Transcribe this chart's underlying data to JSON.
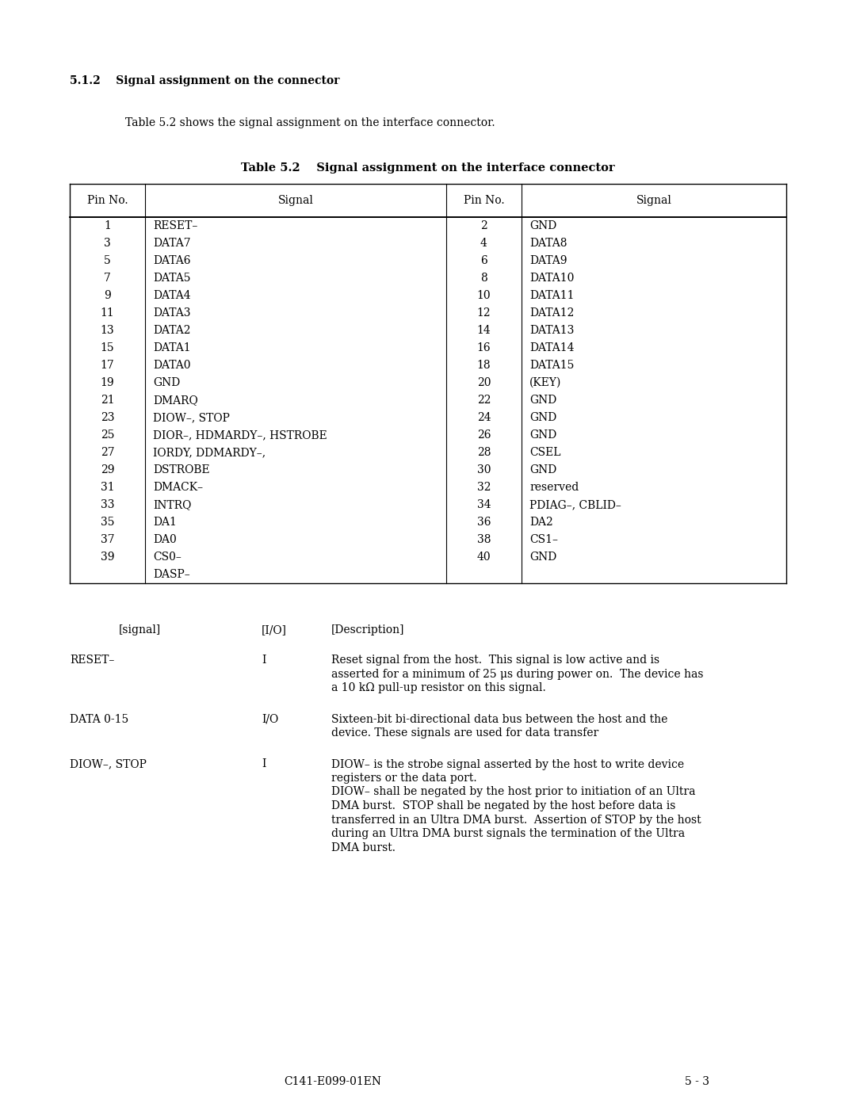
{
  "section_heading_num": "5.1.2",
  "section_heading_text": "Signal assignment on the connector",
  "intro_text": "Table 5.2 shows the signal assignment on the interface connector.",
  "table_title": "Table 5.2  Signal assignment on the interface connector",
  "table_headers": [
    "Pin No.",
    "Signal",
    "Pin No.",
    "Signal"
  ],
  "table_rows_left": [
    [
      "1",
      "RESET–"
    ],
    [
      "3",
      "DATA7"
    ],
    [
      "5",
      "DATA6"
    ],
    [
      "7",
      "DATA5"
    ],
    [
      "9",
      "DATA4"
    ],
    [
      "11",
      "DATA3"
    ],
    [
      "13",
      "DATA2"
    ],
    [
      "15",
      "DATA1"
    ],
    [
      "17",
      "DATA0"
    ],
    [
      "19",
      "GND"
    ],
    [
      "21",
      "DMARQ"
    ],
    [
      "23",
      "DIOW–, STOP"
    ],
    [
      "25",
      "DIOR–, HDMARDY–, HSTROBE"
    ],
    [
      "27",
      "IORDY, DDMARDY–,"
    ],
    [
      "29",
      "DSTROBE"
    ],
    [
      "31",
      "DMACK–"
    ],
    [
      "33",
      "INTRQ"
    ],
    [
      "35",
      "DA1"
    ],
    [
      "37",
      "DA0"
    ],
    [
      "39",
      "CS0–"
    ],
    [
      "",
      "DASP–"
    ]
  ],
  "table_rows_right": [
    [
      "2",
      "GND"
    ],
    [
      "4",
      "DATA8"
    ],
    [
      "6",
      "DATA9"
    ],
    [
      "8",
      "DATA10"
    ],
    [
      "10",
      "DATA11"
    ],
    [
      "12",
      "DATA12"
    ],
    [
      "14",
      "DATA13"
    ],
    [
      "16",
      "DATA14"
    ],
    [
      "18",
      "DATA15"
    ],
    [
      "20",
      "(KEY)"
    ],
    [
      "22",
      "GND"
    ],
    [
      "24",
      "GND"
    ],
    [
      "26",
      "GND"
    ],
    [
      "28",
      "CSEL"
    ],
    [
      "30",
      "GND"
    ],
    [
      "32",
      "reserved"
    ],
    [
      "34",
      "PDIAG–, CBLID–"
    ],
    [
      "36",
      "DA2"
    ],
    [
      "38",
      "CS1–"
    ],
    [
      "40",
      "GND"
    ],
    [
      "",
      ""
    ]
  ],
  "signal_header": "[signal]",
  "io_header": "[I/O]",
  "desc_header": "[Description]",
  "signal_entries": [
    {
      "signal": "RESET–",
      "io": "I",
      "description": "Reset signal from the host.  This signal is low active and is\nasserted for a minimum of 25 μs during power on.  The device has\na 10 kΩ pull-up resistor on this signal."
    },
    {
      "signal": "DATA 0-15",
      "io": "I/O",
      "description": "Sixteen-bit bi-directional data bus between the host and the\ndevice. These signals are used for data transfer"
    },
    {
      "signal": "DIOW–, STOP",
      "io": "I",
      "description": "DIOW– is the strobe signal asserted by the host to write device\nregisters or the data port.\nDIOW– shall be negated by the host prior to initiation of an Ultra\nDMA burst.  STOP shall be negated by the host before data is\ntransferred in an Ultra DMA burst.  Assertion of STOP by the host\nduring an Ultra DMA burst signals the termination of the Ultra\nDMA burst."
    }
  ],
  "footer_left": "C141-E099-01EN",
  "footer_right": "5 - 3",
  "bg_color": "#ffffff",
  "text_color": "#000000"
}
